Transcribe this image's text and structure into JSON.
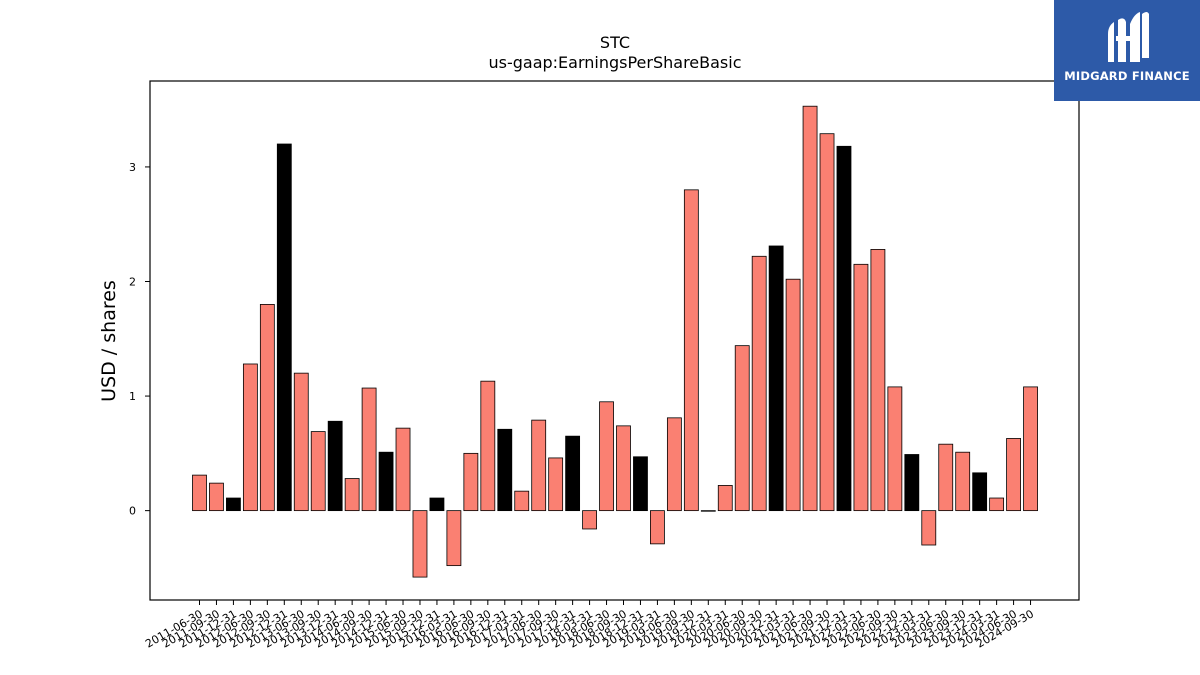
{
  "chart_data": {
    "type": "bar",
    "title": "STC",
    "subtitle": "us-gaap:EarningsPerShareBasic",
    "xlabel": "",
    "ylabel": "USD / shares",
    "ylim": [
      -0.78,
      3.75
    ],
    "yticks": [
      0,
      1,
      2,
      3
    ],
    "grid": false,
    "colors": {
      "positive": "#fa8072",
      "negative": "#fa8072",
      "highlight": "#000000",
      "edge": "#000000"
    },
    "categories": [
      "2011-06-30",
      "2011-09-30",
      "2011-12-31",
      "2012-06-30",
      "2012-09-30",
      "2012-12-31",
      "2013-06-30",
      "2013-09-30",
      "2013-12-31",
      "2014-06-30",
      "2014-09-30",
      "2014-12-31",
      "2015-06-30",
      "2015-09-30",
      "2015-12-31",
      "2016-03-31",
      "2016-06-30",
      "2016-09-30",
      "2016-12-31",
      "2017-03-31",
      "2017-06-30",
      "2017-09-30",
      "2017-12-31",
      "2018-03-31",
      "2018-06-30",
      "2018-09-30",
      "2018-12-31",
      "2019-03-31",
      "2019-06-30",
      "2019-09-30",
      "2019-12-31",
      "2020-03-31",
      "2020-06-30",
      "2020-09-30",
      "2020-12-31",
      "2021-03-31",
      "2021-06-30",
      "2021-09-30",
      "2021-12-31",
      "2022-03-31",
      "2022-06-30",
      "2022-09-30",
      "2022-12-31",
      "2023-03-31",
      "2023-06-30",
      "2023-09-30",
      "2023-12-31",
      "2024-03-31",
      "2024-06-30",
      "2024-09-30"
    ],
    "values": [
      0.31,
      0.24,
      0.11,
      1.28,
      1.8,
      3.2,
      1.2,
      0.69,
      0.78,
      0.28,
      1.07,
      0.51,
      0.72,
      -0.58,
      0.11,
      -0.48,
      0.5,
      1.13,
      0.71,
      0.17,
      0.79,
      0.46,
      0.65,
      -0.16,
      0.95,
      0.74,
      0.47,
      -0.29,
      0.81,
      2.8,
      0.0,
      0.22,
      1.44,
      2.22,
      2.31,
      2.02,
      3.53,
      3.29,
      3.18,
      2.15,
      2.28,
      1.08,
      0.49,
      -0.3,
      0.58,
      0.51,
      0.33,
      0.11,
      0.63,
      1.08
    ],
    "highlight": [
      false,
      false,
      true,
      false,
      false,
      true,
      false,
      false,
      true,
      false,
      false,
      true,
      false,
      false,
      true,
      false,
      false,
      false,
      true,
      false,
      false,
      false,
      true,
      false,
      false,
      false,
      true,
      false,
      false,
      false,
      true,
      false,
      false,
      false,
      true,
      false,
      false,
      false,
      true,
      false,
      false,
      false,
      true,
      false,
      false,
      false,
      true,
      false,
      false,
      false
    ]
  },
  "logo": {
    "text": "MIDGARD FINANCE"
  }
}
